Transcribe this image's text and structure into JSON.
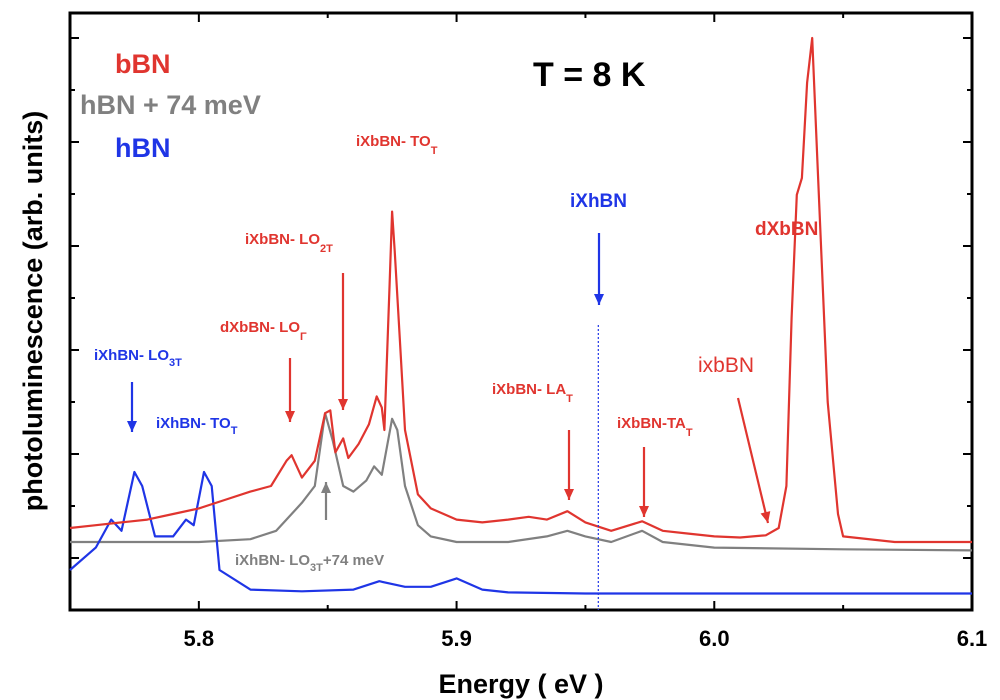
{
  "chart_data": {
    "type": "line",
    "xlabel": "Energy ( eV )",
    "ylabel": "photoluminescence (arb. units)",
    "xlim": [
      5.75,
      6.1
    ],
    "ylim": [
      0,
      1
    ],
    "x_ticks": [
      "5.8",
      "5.9",
      "6.0",
      "6.1"
    ],
    "x_tick_values": [
      5.8,
      5.9,
      6.0,
      6.1
    ],
    "y_tick_labels_shown": false,
    "grid": false,
    "legend_position": "top-left",
    "temperature_label": "T = 8 K",
    "colors": {
      "bBN": "#e0352f",
      "hBN_shifted": "#808080",
      "hBN": "#1f35e6"
    },
    "legend": [
      {
        "text": "bBN",
        "color": "#e0352f"
      },
      {
        "text": "hBN + 74 meV",
        "color": "#808080"
      },
      {
        "text": "hBN",
        "color": "#1f35e6"
      }
    ],
    "series": [
      {
        "name": "bBN",
        "color": "#e0352f",
        "points": [
          [
            5.75,
            0.125
          ],
          [
            5.76,
            0.13
          ],
          [
            5.77,
            0.135
          ],
          [
            5.78,
            0.14
          ],
          [
            5.79,
            0.15
          ],
          [
            5.8,
            0.16
          ],
          [
            5.81,
            0.175
          ],
          [
            5.82,
            0.19
          ],
          [
            5.828,
            0.2
          ],
          [
            5.834,
            0.245
          ],
          [
            5.836,
            0.255
          ],
          [
            5.84,
            0.215
          ],
          [
            5.845,
            0.245
          ],
          [
            5.849,
            0.33
          ],
          [
            5.851,
            0.335
          ],
          [
            5.853,
            0.26
          ],
          [
            5.856,
            0.285
          ],
          [
            5.858,
            0.25
          ],
          [
            5.862,
            0.275
          ],
          [
            5.866,
            0.31
          ],
          [
            5.869,
            0.36
          ],
          [
            5.871,
            0.34
          ],
          [
            5.872,
            0.3
          ],
          [
            5.874,
            0.56
          ],
          [
            5.875,
            0.69
          ],
          [
            5.876,
            0.62
          ],
          [
            5.878,
            0.46
          ],
          [
            5.88,
            0.3
          ],
          [
            5.885,
            0.185
          ],
          [
            5.89,
            0.16
          ],
          [
            5.9,
            0.14
          ],
          [
            5.91,
            0.135
          ],
          [
            5.92,
            0.14
          ],
          [
            5.928,
            0.145
          ],
          [
            5.935,
            0.14
          ],
          [
            5.943,
            0.155
          ],
          [
            5.95,
            0.135
          ],
          [
            5.96,
            0.12
          ],
          [
            5.972,
            0.137
          ],
          [
            5.98,
            0.12
          ],
          [
            5.99,
            0.115
          ],
          [
            6.0,
            0.11
          ],
          [
            6.01,
            0.108
          ],
          [
            6.02,
            0.112
          ],
          [
            6.025,
            0.125
          ],
          [
            6.028,
            0.2
          ],
          [
            6.03,
            0.5
          ],
          [
            6.032,
            0.72
          ],
          [
            6.034,
            0.75
          ],
          [
            6.036,
            0.92
          ],
          [
            6.038,
            1.0
          ],
          [
            6.04,
            0.78
          ],
          [
            6.044,
            0.35
          ],
          [
            6.048,
            0.15
          ],
          [
            6.05,
            0.11
          ],
          [
            6.07,
            0.1
          ],
          [
            6.1,
            0.1
          ]
        ]
      },
      {
        "name": "hBN + 74 meV",
        "color": "#808080",
        "points": [
          [
            5.75,
            0.1
          ],
          [
            5.78,
            0.1
          ],
          [
            5.8,
            0.1
          ],
          [
            5.82,
            0.105
          ],
          [
            5.83,
            0.12
          ],
          [
            5.84,
            0.17
          ],
          [
            5.845,
            0.2
          ],
          [
            5.849,
            0.33
          ],
          [
            5.852,
            0.28
          ],
          [
            5.856,
            0.2
          ],
          [
            5.86,
            0.19
          ],
          [
            5.865,
            0.21
          ],
          [
            5.868,
            0.235
          ],
          [
            5.871,
            0.22
          ],
          [
            5.875,
            0.32
          ],
          [
            5.877,
            0.3
          ],
          [
            5.88,
            0.2
          ],
          [
            5.885,
            0.13
          ],
          [
            5.89,
            0.11
          ],
          [
            5.9,
            0.1
          ],
          [
            5.92,
            0.1
          ],
          [
            5.935,
            0.11
          ],
          [
            5.943,
            0.12
          ],
          [
            5.95,
            0.11
          ],
          [
            5.96,
            0.1
          ],
          [
            5.972,
            0.12
          ],
          [
            5.98,
            0.1
          ],
          [
            6.0,
            0.09
          ],
          [
            6.05,
            0.087
          ],
          [
            6.1,
            0.085
          ]
        ]
      },
      {
        "name": "hBN",
        "color": "#1f35e6",
        "points": [
          [
            5.75,
            0.05
          ],
          [
            5.76,
            0.09
          ],
          [
            5.766,
            0.14
          ],
          [
            5.77,
            0.12
          ],
          [
            5.775,
            0.225
          ],
          [
            5.778,
            0.2
          ],
          [
            5.783,
            0.11
          ],
          [
            5.79,
            0.11
          ],
          [
            5.795,
            0.14
          ],
          [
            5.798,
            0.13
          ],
          [
            5.802,
            0.225
          ],
          [
            5.805,
            0.2
          ],
          [
            5.808,
            0.05
          ],
          [
            5.82,
            0.015
          ],
          [
            5.84,
            0.012
          ],
          [
            5.86,
            0.015
          ],
          [
            5.87,
            0.03
          ],
          [
            5.88,
            0.02
          ],
          [
            5.89,
            0.02
          ],
          [
            5.9,
            0.035
          ],
          [
            5.91,
            0.015
          ],
          [
            5.92,
            0.01
          ],
          [
            5.95,
            0.008
          ],
          [
            6.0,
            0.008
          ],
          [
            6.1,
            0.008
          ]
        ]
      }
    ],
    "vertical_marker": {
      "x": 5.955,
      "color": "#1f35e6",
      "style": "dotted"
    },
    "annotations": [
      {
        "text": "iXhBN- LO",
        "sub": "3T",
        "color": "#1f35e6",
        "x": 5.775
      },
      {
        "text": "iXhBN- TO",
        "sub": "T",
        "color": "#1f35e6",
        "x": 5.802
      },
      {
        "text": "dXbBN- LO",
        "sub": "Γ",
        "color": "#e0352f",
        "x": 5.835
      },
      {
        "text": "iXbBN- LO",
        "sub": "2T",
        "color": "#e0352f",
        "x": 5.856
      },
      {
        "text": "iXbBN- TO",
        "sub": "T",
        "color": "#e0352f",
        "x": 5.875
      },
      {
        "text": "iXhBN- LO",
        "sub": "3T",
        "suffix": "+74 meV",
        "color": "#808080",
        "x": 5.849
      },
      {
        "text": "iXhBN",
        "sub": "",
        "color": "#1f35e6",
        "x": 5.955
      },
      {
        "text": "iXbBN- LA",
        "sub": "T",
        "color": "#e0352f",
        "x": 5.943
      },
      {
        "text": "iXbBN-TA",
        "sub": "T",
        "color": "#e0352f",
        "x": 5.972
      },
      {
        "text": "dXbBN",
        "sub": "",
        "color": "#e0352f",
        "x": 6.038
      },
      {
        "text": "ixbBN",
        "sub": "",
        "color": "#e0352f",
        "x": 6.022
      }
    ]
  }
}
